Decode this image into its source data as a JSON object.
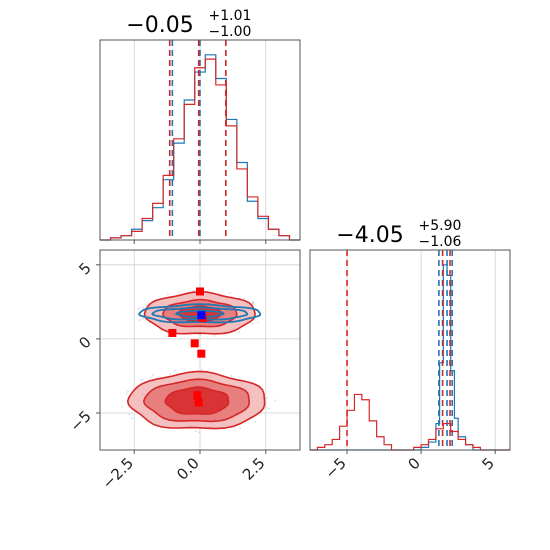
{
  "chart_data": {
    "type": "corner",
    "colors": {
      "blue": "#1f77b4",
      "red": "#d62728",
      "marker_blue": "#0000ff",
      "marker_red": "#ff0000"
    },
    "panels": [
      {
        "kind": "histogram",
        "title": {
          "value": "−0.05",
          "upper": "+1.01",
          "lower": "−1.00"
        },
        "xlim": [
          -3.8,
          3.8
        ],
        "x_ticks": [
          -2.5,
          0.0,
          2.5
        ],
        "grid": true,
        "series": [
          {
            "name": "",
            "color": "#1f77b4",
            "bin_edges": [
              -3.8,
              -3.4,
              -3.0,
              -2.6,
              -2.2,
              -1.8,
              -1.4,
              -1.0,
              -0.6,
              -0.2,
              0.2,
              0.6,
              1.0,
              1.4,
              1.8,
              2.2,
              2.6,
              3.0,
              3.4,
              3.8
            ],
            "counts": [
              0,
              1,
              2,
              5,
              9,
              15,
              28,
              45,
              65,
              78,
              86,
              75,
              56,
              36,
              18,
              10,
              5,
              2,
              0
            ],
            "quantile_lines": [
              -1.05,
              0.0,
              0.98
            ]
          },
          {
            "name": "",
            "color": "#d62728",
            "bin_edges": [
              -3.8,
              -3.4,
              -3.0,
              -2.6,
              -2.2,
              -1.8,
              -1.4,
              -1.0,
              -0.6,
              -0.2,
              0.2,
              0.6,
              1.0,
              1.4,
              1.8,
              2.2,
              2.6,
              3.0,
              3.4,
              3.8
            ],
            "counts": [
              0,
              1,
              2,
              4,
              10,
              17,
              30,
              47,
              63,
              80,
              84,
              72,
              53,
              33,
              20,
              11,
              5,
              2,
              0
            ],
            "quantile_lines": [
              -1.15,
              -0.05,
              0.98
            ]
          }
        ]
      },
      {
        "kind": "scatter_contour",
        "xlim": [
          -3.8,
          3.8
        ],
        "ylim": [
          -7.5,
          6.0
        ],
        "x_ticks": [
          -2.5,
          0.0,
          2.5
        ],
        "x_tick_labels": [
          "−2.5",
          "0.0",
          "2.5"
        ],
        "y_ticks": [
          -5,
          0,
          5
        ],
        "y_tick_labels": [
          "−5",
          "0",
          "5"
        ],
        "grid": true,
        "blue_mode": {
          "center": [
            0.0,
            1.7
          ],
          "contours": [
            [
              2.3,
              0.6
            ],
            [
              1.8,
              0.4
            ],
            [
              0.9,
              0.2
            ]
          ]
        },
        "red_modes": [
          {
            "center": [
              0.0,
              1.7
            ],
            "contours_filled": [
              [
                2.1,
                1.4
              ],
              [
                1.4,
                0.9
              ],
              [
                0.8,
                0.5
              ]
            ]
          },
          {
            "center": [
              -0.1,
              -4.2
            ],
            "contours_filled": [
              [
                2.6,
                1.9
              ],
              [
                2.0,
                1.4
              ],
              [
                1.2,
                0.9
              ]
            ]
          }
        ],
        "red_points": [
          [
            0.0,
            3.2
          ],
          [
            -1.05,
            0.4
          ],
          [
            -0.2,
            -0.3
          ],
          [
            0.05,
            -1.0
          ],
          [
            -0.1,
            -3.8
          ],
          [
            -0.05,
            -4.3
          ],
          [
            0.1,
            1.4
          ]
        ],
        "blue_points": [
          [
            0.05,
            1.6
          ]
        ]
      },
      {
        "kind": "histogram",
        "title": {
          "value": "−4.05",
          "upper": "+5.90",
          "lower": "−1.06"
        },
        "xlim": [
          -7.5,
          6.0
        ],
        "x_ticks": [
          -5,
          0,
          5
        ],
        "x_tick_labels": [
          "−5",
          "0",
          "5"
        ],
        "grid": true,
        "series": [
          {
            "name": "",
            "color": "#1f77b4",
            "bin_edges": [
              -7.5,
              -7.0,
              -6.5,
              -6.0,
              -5.5,
              -5.0,
              -4.5,
              -4.0,
              -3.5,
              -3.0,
              -2.5,
              -2.0,
              -1.5,
              -1.0,
              -0.5,
              0.0,
              0.5,
              1.0,
              1.25,
              1.5,
              1.75,
              2.0,
              2.25,
              2.5,
              3.0,
              3.5,
              4.0,
              6.0
            ],
            "counts": [
              0,
              0,
              0,
              0,
              0,
              0,
              0,
              0,
              0,
              0,
              0,
              0,
              0,
              0,
              0,
              1,
              3,
              10,
              33,
              70,
              66,
              30,
              12,
              5,
              2,
              0,
              0
            ],
            "quantile_lines": [
              1.2,
              1.75,
              2.1
            ]
          },
          {
            "name": "",
            "color": "#d62728",
            "bin_edges": [
              -7.5,
              -7.0,
              -6.5,
              -6.0,
              -5.5,
              -5.0,
              -4.5,
              -4.0,
              -3.5,
              -3.0,
              -2.5,
              -2.0,
              -1.5,
              -1.0,
              -0.5,
              0.0,
              0.5,
              1.0,
              1.5,
              2.0,
              2.5,
              3.0,
              3.5,
              4.0,
              6.0
            ],
            "counts": [
              0,
              1,
              2,
              4,
              9,
              15,
              21,
              19,
              11,
              5,
              2,
              0,
              0,
              0,
              1,
              2,
              4,
              8,
              10,
              7,
              4,
              2,
              1,
              0
            ],
            "quantile_lines": [
              -5.0,
              1.45,
              1.95
            ]
          }
        ]
      }
    ]
  }
}
